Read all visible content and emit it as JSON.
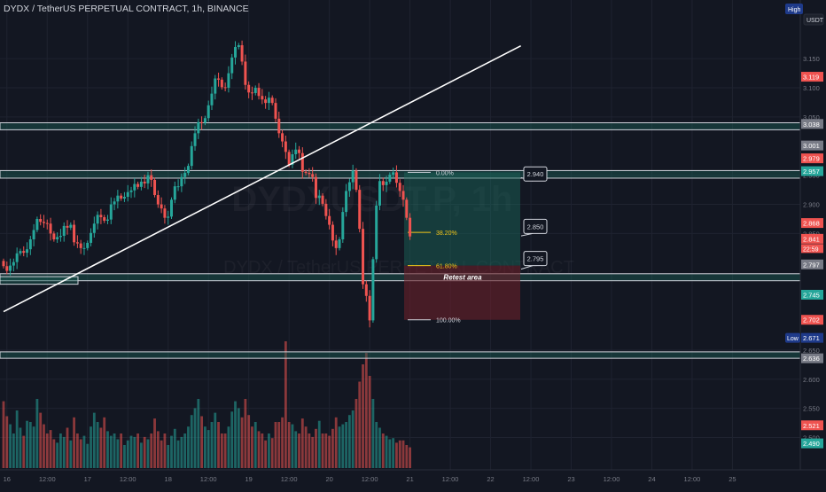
{
  "header": {
    "title": "DYDX / TetherUS PERPETUAL CONTRACT, 1h, BINANCE",
    "currency_badge": "USDT",
    "high_badge": "High",
    "low_badge": "Low"
  },
  "watermark": {
    "symbol": "DYDXUSDT.P, 1h",
    "name": "DYDX / TetherUS PERPETUAL CONTRACT"
  },
  "colors": {
    "background": "#131722",
    "up": "#26a69a",
    "down": "#ef5350",
    "zone_border": "#d1d4dc",
    "zone_fill": "#1b5e55",
    "fib_text": "#f0c419"
  },
  "chart_data": {
    "type": "candlestick",
    "x_ticks": [
      "16",
      "12:00",
      "17",
      "12:00",
      "18",
      "12:00",
      "19",
      "12:00",
      "20",
      "12:00",
      "21",
      "12:00",
      "22",
      "12:00",
      "23",
      "12:00",
      "24",
      "12:00",
      "25"
    ],
    "y_ticks": [
      "3.150",
      "3.100",
      "3.050",
      "2.950",
      "2.900",
      "2.850",
      "2.650",
      "2.600",
      "2.550",
      "2.500"
    ],
    "ylim": [
      2.475,
      3.205
    ],
    "price_labels": [
      {
        "value": 3.119,
        "text": "3.119",
        "color": "#ef5350"
      },
      {
        "value": 3.038,
        "text": "3.038",
        "color": "#787b86"
      },
      {
        "value": 3.001,
        "text": "3.001",
        "color": "#787b86"
      },
      {
        "value": 2.979,
        "text": "2.979",
        "color": "#ef5350"
      },
      {
        "value": 2.957,
        "text": "2.957",
        "color": "#26a69a"
      },
      {
        "value": 2.868,
        "text": "2.868",
        "color": "#ef5350"
      },
      {
        "value": 2.841,
        "text": "2.841",
        "color": "#ef5350"
      },
      {
        "value": 2.797,
        "text": "2.797",
        "color": "#787b86"
      },
      {
        "value": 2.745,
        "text": "2.745",
        "color": "#26a69a"
      },
      {
        "value": 2.702,
        "text": "2.702",
        "color": "#ef5350"
      },
      {
        "value": 2.671,
        "text": "2.671",
        "color": "#1e3a8a"
      },
      {
        "value": 2.636,
        "text": "2.636",
        "color": "#787b86"
      },
      {
        "value": 2.521,
        "text": "2.521",
        "color": "#ef5350"
      },
      {
        "value": 2.49,
        "text": "2.490",
        "color": "#26a69a"
      }
    ],
    "countdown": "22:59",
    "zones": [
      {
        "top": 3.04,
        "bottom": 3.028
      },
      {
        "top": 2.958,
        "bottom": 2.945
      },
      {
        "top": 2.781,
        "bottom": 2.769
      },
      {
        "top": 2.647,
        "bottom": 2.636
      }
    ],
    "trendline": {
      "start": [
        "15 23:00",
        2.716
      ],
      "end": [
        "22 09:00",
        3.172
      ]
    },
    "fib_levels": [
      {
        "ratio": "0.00%",
        "value": 2.955
      },
      {
        "ratio": "38.20%",
        "value": 2.852
      },
      {
        "ratio": "61.80%",
        "value": 2.795
      },
      {
        "ratio": "100.00%",
        "value": 2.702
      }
    ],
    "targets": [
      "2.940",
      "2.850",
      "2.795"
    ],
    "annotation": "Retest area",
    "series": {
      "open": [
        2.803,
        2.794,
        2.786,
        2.795,
        2.801,
        2.816,
        2.82,
        2.817,
        2.823,
        2.84,
        2.856,
        2.875,
        2.87,
        2.868,
        2.867,
        2.85,
        2.84,
        2.844,
        2.846,
        2.863,
        2.86,
        2.865,
        2.835,
        2.833,
        2.825,
        2.825,
        2.834,
        2.851,
        2.867,
        2.882,
        2.878,
        2.872,
        2.874,
        2.9,
        2.905,
        2.915,
        2.91,
        2.913,
        2.921,
        2.924,
        2.935,
        2.93,
        2.939,
        2.936,
        2.95,
        2.942,
        2.916,
        2.9,
        2.893,
        2.877,
        2.879,
        2.908,
        2.931,
        2.931,
        2.947,
        2.954,
        2.966,
        3.0,
        3.022,
        3.041,
        3.04,
        3.048,
        3.07,
        3.09,
        3.116,
        3.114,
        3.101,
        3.1,
        3.125,
        3.152,
        3.17,
        3.173,
        3.145,
        3.105,
        3.092,
        3.091,
        3.1,
        3.086,
        3.08,
        3.074,
        3.083,
        3.074,
        3.047,
        3.022,
        3.008,
        2.99,
        2.968,
        2.986,
        2.994,
        2.988,
        2.956,
        2.954,
        2.952,
        2.947,
        2.911,
        2.915,
        2.901,
        2.88,
        2.865,
        2.838,
        2.825,
        2.84,
        2.887,
        2.923,
        2.938,
        2.958,
        2.925,
        2.858,
        2.763,
        2.743,
        2.701,
        2.806,
        2.898,
        2.94,
        2.933,
        2.939,
        2.951,
        2.955,
        2.937,
        2.923,
        2.908,
        2.877
      ],
      "close": [
        2.794,
        2.786,
        2.795,
        2.801,
        2.816,
        2.82,
        2.817,
        2.823,
        2.84,
        2.856,
        2.875,
        2.87,
        2.868,
        2.867,
        2.85,
        2.84,
        2.844,
        2.846,
        2.863,
        2.86,
        2.865,
        2.835,
        2.833,
        2.825,
        2.825,
        2.834,
        2.851,
        2.867,
        2.882,
        2.878,
        2.872,
        2.874,
        2.9,
        2.905,
        2.915,
        2.91,
        2.913,
        2.921,
        2.924,
        2.935,
        2.93,
        2.939,
        2.936,
        2.95,
        2.942,
        2.916,
        2.9,
        2.893,
        2.877,
        2.879,
        2.908,
        2.931,
        2.931,
        2.947,
        2.954,
        2.966,
        3.0,
        3.022,
        3.041,
        3.04,
        3.048,
        3.07,
        3.09,
        3.116,
        3.114,
        3.101,
        3.1,
        3.125,
        3.152,
        3.17,
        3.173,
        3.145,
        3.105,
        3.092,
        3.091,
        3.1,
        3.086,
        3.08,
        3.074,
        3.083,
        3.074,
        3.047,
        3.022,
        3.008,
        2.99,
        2.968,
        2.986,
        2.994,
        2.988,
        2.956,
        2.954,
        2.952,
        2.947,
        2.911,
        2.915,
        2.901,
        2.88,
        2.865,
        2.838,
        2.825,
        2.84,
        2.887,
        2.923,
        2.938,
        2.958,
        2.925,
        2.858,
        2.763,
        2.743,
        2.701,
        2.806,
        2.898,
        2.94,
        2.933,
        2.939,
        2.951,
        2.955,
        2.937,
        2.923,
        2.908,
        2.877,
        2.845
      ],
      "volume": [
        0.58,
        0.45,
        0.38,
        0.3,
        0.5,
        0.35,
        0.28,
        0.41,
        0.4,
        0.36,
        0.6,
        0.48,
        0.38,
        0.3,
        0.33,
        0.25,
        0.22,
        0.3,
        0.27,
        0.35,
        0.24,
        0.44,
        0.3,
        0.25,
        0.28,
        0.21,
        0.36,
        0.48,
        0.4,
        0.35,
        0.44,
        0.32,
        0.28,
        0.3,
        0.25,
        0.3,
        0.2,
        0.24,
        0.28,
        0.27,
        0.3,
        0.22,
        0.27,
        0.25,
        0.3,
        0.43,
        0.32,
        0.24,
        0.3,
        0.2,
        0.28,
        0.34,
        0.24,
        0.27,
        0.3,
        0.36,
        0.46,
        0.52,
        0.6,
        0.45,
        0.36,
        0.33,
        0.4,
        0.48,
        0.4,
        0.3,
        0.3,
        0.36,
        0.49,
        0.58,
        0.52,
        0.44,
        0.6,
        0.46,
        0.36,
        0.4,
        0.32,
        0.3,
        0.24,
        0.3,
        0.26,
        0.4,
        0.4,
        0.44,
        1.1,
        0.4,
        0.38,
        0.32,
        0.3,
        0.43,
        0.36,
        0.3,
        0.27,
        0.34,
        0.41,
        0.3,
        0.3,
        0.28,
        0.34,
        0.44,
        0.36,
        0.38,
        0.4,
        0.46,
        0.5,
        0.6,
        0.75,
        0.9,
        1.0,
        0.8,
        0.6,
        0.4,
        0.35,
        0.3,
        0.28,
        0.25,
        0.26,
        0.22,
        0.24,
        0.24,
        0.2,
        0.18
      ]
    }
  }
}
